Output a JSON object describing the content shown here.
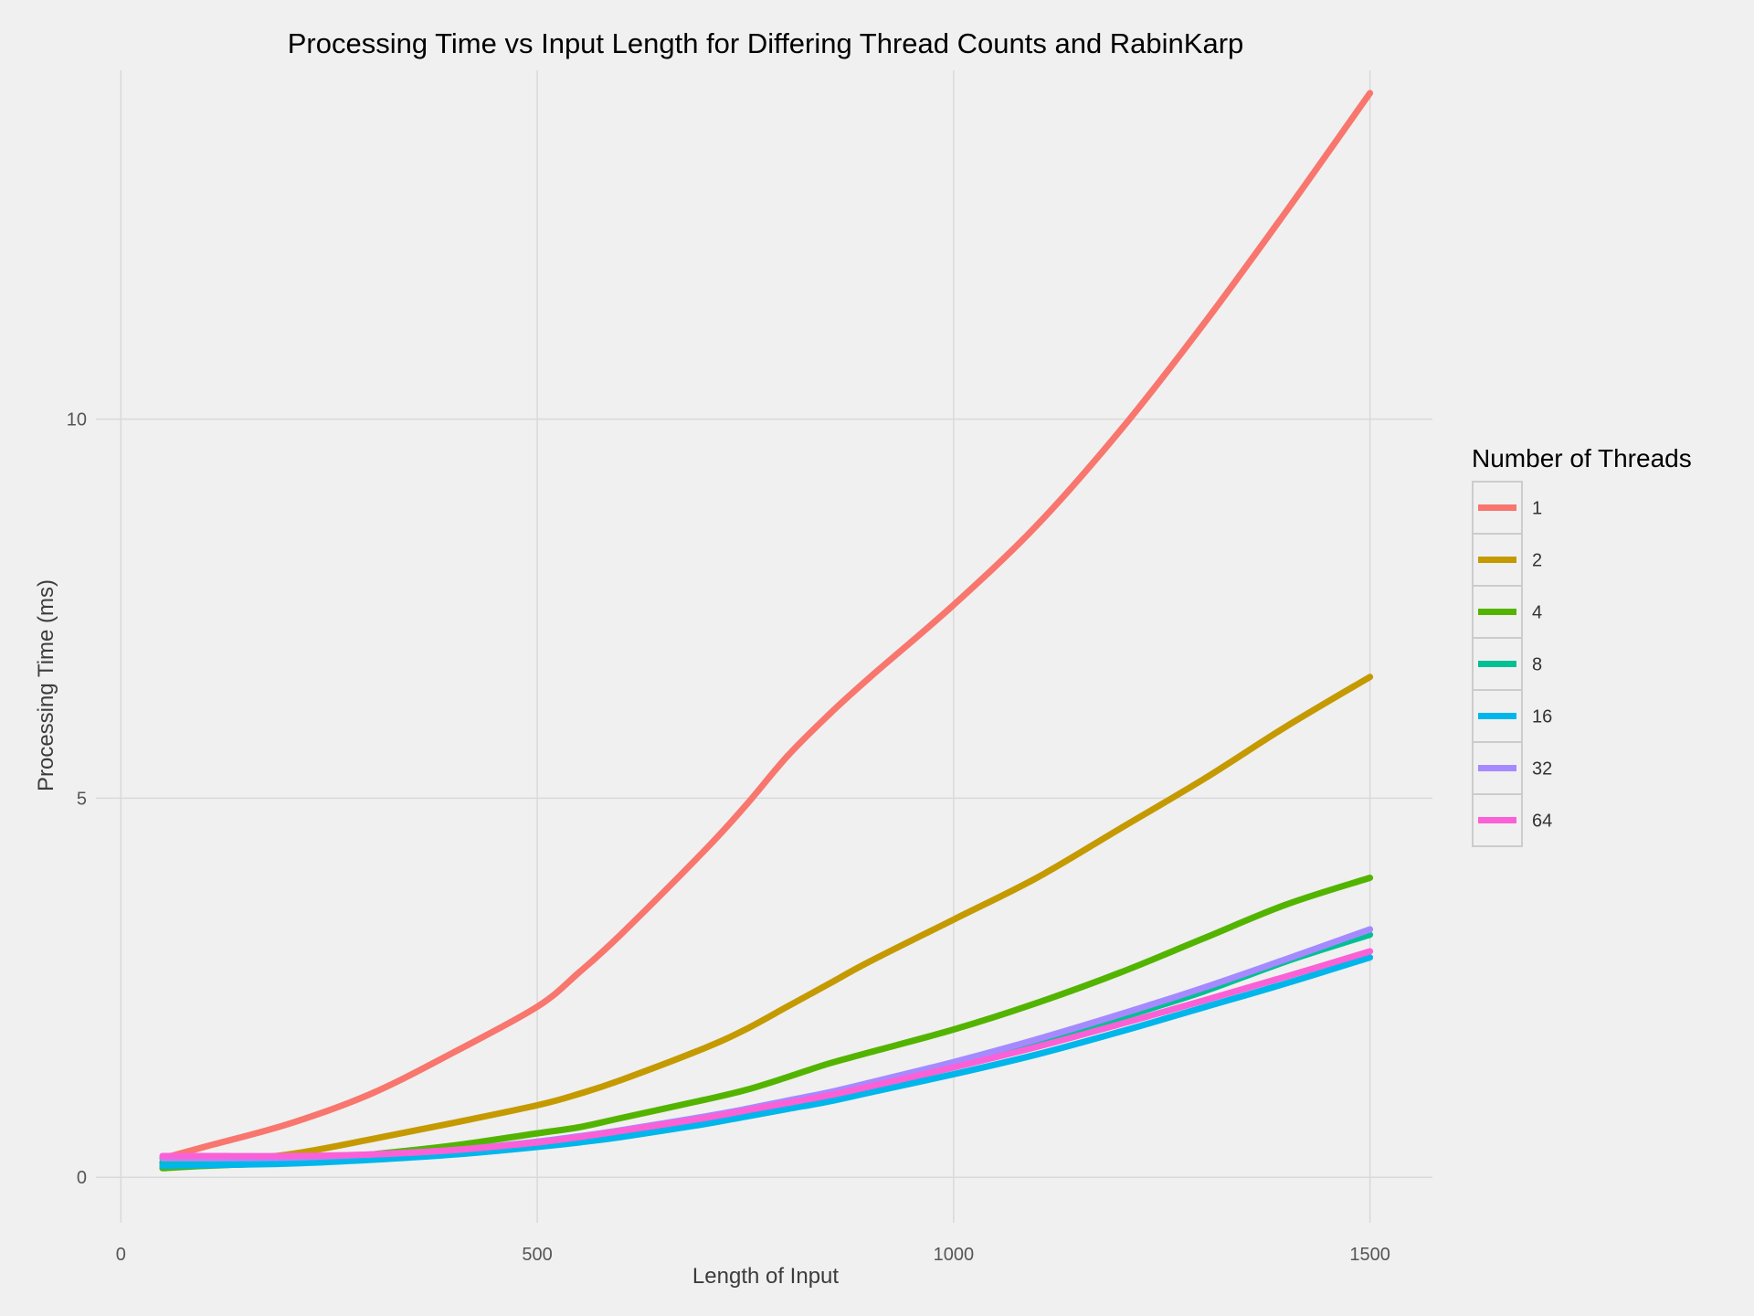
{
  "chart_data": {
    "type": "line",
    "title": "Processing Time vs Input Length for Differing Thread Counts and RabinKarp",
    "xlabel": "Length of Input",
    "ylabel": "Processing Time (ms)",
    "xlim": [
      -30,
      1575
    ],
    "ylim": [
      -0.6,
      14.6
    ],
    "x_ticks": [
      0,
      500,
      1000,
      1500
    ],
    "x_tick_labels": [
      "0",
      "500",
      "1000",
      "1500"
    ],
    "y_ticks": [
      0,
      5,
      10
    ],
    "y_tick_labels": [
      "0",
      "5",
      "10"
    ],
    "grid": true,
    "legend": {
      "title": "Number of Threads",
      "position": "right"
    },
    "x": [
      50,
      100,
      200,
      300,
      400,
      500,
      550,
      600,
      700,
      750,
      800,
      850,
      900,
      1000,
      1100,
      1200,
      1300,
      1400,
      1500
    ],
    "series": [
      {
        "name": "1",
        "color": "#f8766d",
        "values": [
          0.25,
          0.4,
          0.7,
          1.1,
          1.65,
          2.25,
          2.7,
          3.2,
          4.3,
          4.9,
          5.55,
          6.1,
          6.6,
          7.55,
          8.6,
          9.85,
          11.25,
          12.75,
          14.3
        ]
      },
      {
        "name": "2",
        "color": "#c49a00",
        "values": [
          0.18,
          0.2,
          0.3,
          0.5,
          0.72,
          0.95,
          1.1,
          1.28,
          1.7,
          1.95,
          2.25,
          2.55,
          2.85,
          3.4,
          3.95,
          4.6,
          5.25,
          5.95,
          6.6
        ]
      },
      {
        "name": "4",
        "color": "#53b400",
        "values": [
          0.12,
          0.15,
          0.2,
          0.3,
          0.42,
          0.58,
          0.66,
          0.78,
          1.02,
          1.15,
          1.32,
          1.5,
          1.65,
          1.95,
          2.3,
          2.7,
          3.15,
          3.6,
          3.95
        ]
      },
      {
        "name": "8",
        "color": "#00c094",
        "values": [
          0.2,
          0.2,
          0.22,
          0.27,
          0.33,
          0.43,
          0.5,
          0.58,
          0.76,
          0.86,
          0.97,
          1.08,
          1.2,
          1.45,
          1.75,
          2.1,
          2.45,
          2.85,
          3.2
        ]
      },
      {
        "name": "16",
        "color": "#00b6eb",
        "values": [
          0.15,
          0.16,
          0.18,
          0.23,
          0.3,
          0.4,
          0.46,
          0.53,
          0.7,
          0.8,
          0.9,
          1.0,
          1.12,
          1.36,
          1.62,
          1.92,
          2.24,
          2.56,
          2.9
        ]
      },
      {
        "name": "32",
        "color": "#a58aff",
        "values": [
          0.25,
          0.25,
          0.26,
          0.3,
          0.36,
          0.47,
          0.54,
          0.62,
          0.8,
          0.9,
          1.01,
          1.12,
          1.25,
          1.52,
          1.82,
          2.15,
          2.5,
          2.88,
          3.27
        ]
      },
      {
        "name": "64",
        "color": "#fb61d7",
        "values": [
          0.28,
          0.28,
          0.28,
          0.3,
          0.36,
          0.46,
          0.53,
          0.61,
          0.78,
          0.88,
          0.98,
          1.08,
          1.2,
          1.45,
          1.72,
          2.02,
          2.33,
          2.65,
          2.98
        ]
      }
    ]
  }
}
